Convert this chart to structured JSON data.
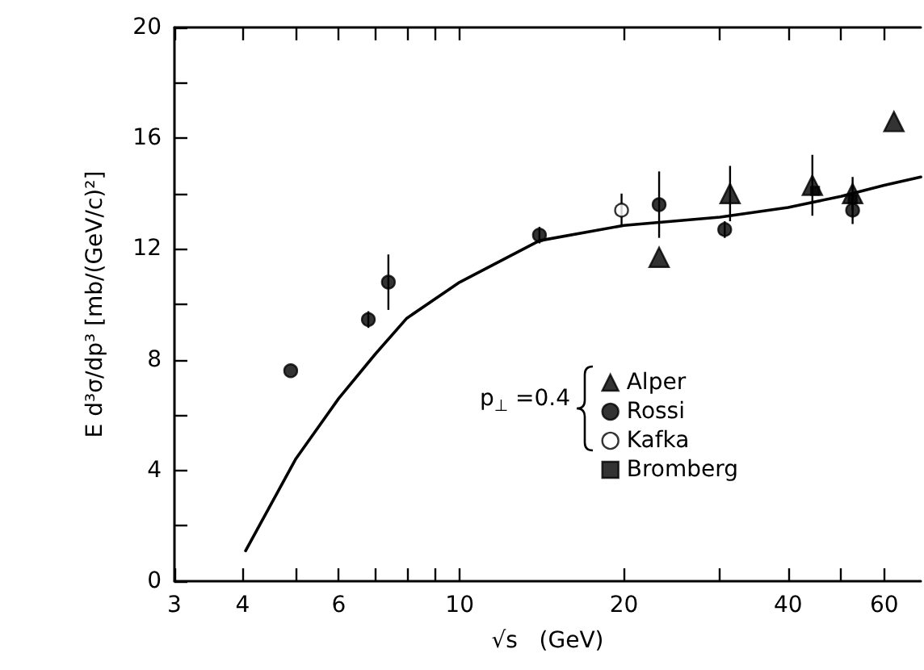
{
  "chart_data": {
    "type": "scatter",
    "xlabel": "√s   (GeV)",
    "ylabel": "E d³σ/dp³ [mb/(GeV/c)²]",
    "legend_title": "p$_{⊥}$ =0.4",
    "log": "x",
    "grid": false,
    "legend": "right",
    "xlim": [
      3,
      70
    ],
    "xticks": [
      3,
      4,
      {
        "value": 5,
        "label": null
      },
      6,
      {
        "value": 7,
        "label": null
      },
      {
        "value": 8,
        "label": null
      },
      {
        "value": 9,
        "label": null
      },
      10,
      20,
      {
        "value": 30,
        "label": null
      },
      40,
      {
        "value": 50,
        "label": null
      },
      60
    ],
    "ylim": [
      0,
      20
    ],
    "yticks": [
      0,
      {
        "value": 2,
        "label": null
      },
      4,
      {
        "value": 6,
        "label": null
      },
      8,
      {
        "value": 10,
        "label": null
      },
      12,
      {
        "value": 14,
        "label": null
      },
      16,
      {
        "value": 18,
        "label": null
      },
      20
    ],
    "series": [
      {
        "name": "Alper",
        "marker": "triangle",
        "color": "#000000",
        "x": [
          23.2,
          31.3,
          44.3,
          52.5,
          62.5
        ],
        "values": [
          11.7,
          14.0,
          14.3,
          14.0,
          16.6
        ],
        "errors": [
          null,
          1.0,
          1.1,
          0.6,
          null
        ]
      },
      {
        "name": "Rossi",
        "marker": "circle",
        "color": "#000000",
        "x": [
          4.9,
          6.8,
          7.4,
          14,
          23.2,
          30.6,
          52.5
        ],
        "values": [
          7.6,
          9.45,
          10.8,
          12.5,
          13.6,
          12.7,
          13.4
        ],
        "errors": [
          null,
          0.3,
          1.0,
          0.3,
          1.2,
          0.3,
          0.5
        ]
      },
      {
        "name": "Kafka",
        "marker": "circle",
        "color": "#ffffff",
        "x": [
          19.8
        ],
        "values": [
          13.4
        ],
        "errors": [
          0.6
        ]
      },
      {
        "name": "Bromberg",
        "marker": "square",
        "color": "#000000",
        "x": [
          44.8,
          52.5
        ],
        "values": [
          14.1,
          13.8
        ]
      },
      {
        "type": "line",
        "marker": "none",
        "color": "#000000",
        "line_style": "solid",
        "x": [
          4.05,
          5,
          6,
          7,
          8,
          10,
          14,
          20,
          30,
          40,
          50,
          60,
          70
        ],
        "values": [
          1.1,
          4.4,
          6.6,
          8.2,
          9.5,
          10.8,
          12.3,
          12.85,
          13.15,
          13.5,
          13.9,
          14.3,
          14.6
        ]
      }
    ]
  }
}
